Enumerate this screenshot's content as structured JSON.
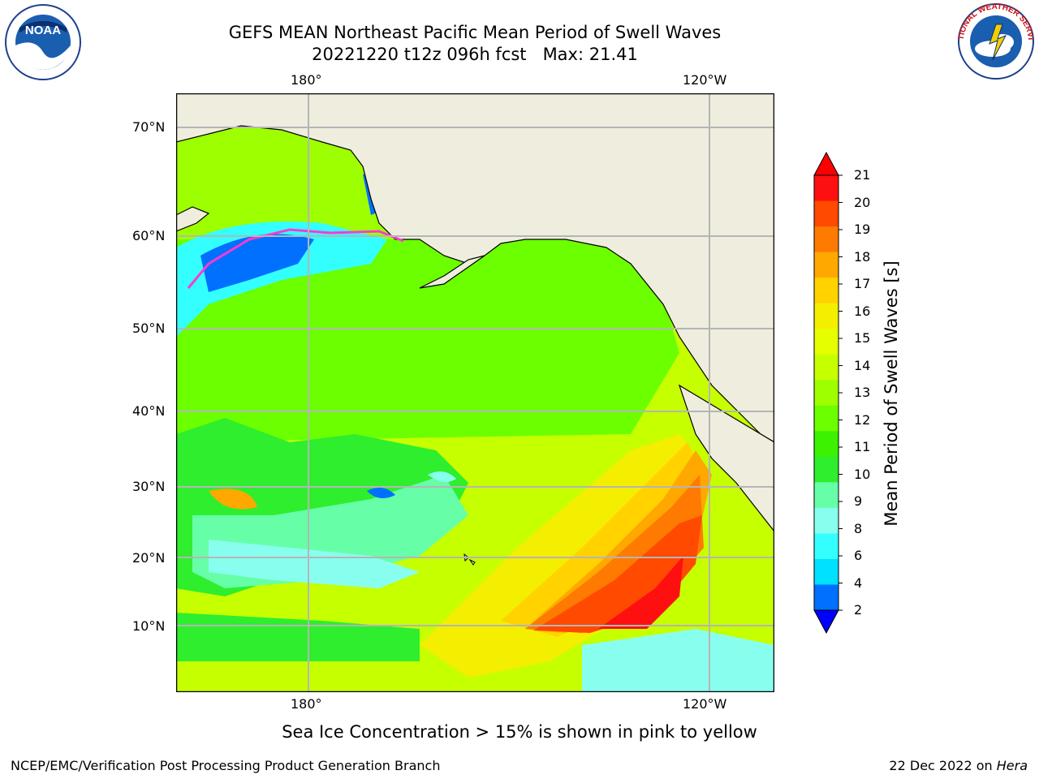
{
  "header": {
    "title_line1": "GEFS MEAN Northeast Pacific Mean Period of Swell Waves",
    "title_line2": "20221220 t12z 096h fcst   Max: 21.41"
  },
  "logos": {
    "left": {
      "text": "NOAA"
    },
    "right": {
      "text": "NATIONAL WEATHER SERVICE"
    }
  },
  "map": {
    "projection": "PlateCarree",
    "extent": {
      "lon_min": 160,
      "lon_max": 250,
      "lat_min": 0,
      "lat_max": 72
    },
    "longitude_labels": [
      "180°",
      "120°W"
    ],
    "latitude_labels": [
      "70°N",
      "60°N",
      "50°N",
      "40°N",
      "30°N",
      "20°N",
      "10°N"
    ],
    "land_color": "#efedde",
    "grid_color": "#b5b5b5"
  },
  "colorbar": {
    "label": "Mean Period of Swell Waves [s]",
    "ticks": [
      "21",
      "20",
      "19",
      "18",
      "17",
      "16",
      "15",
      "14",
      "13",
      "12",
      "11",
      "10",
      "9",
      "8",
      "6",
      "4",
      "2"
    ],
    "colors_top_to_bottom": [
      "#ff1010",
      "#ff4a00",
      "#ff7a00",
      "#ffa800",
      "#ffd200",
      "#f4ee00",
      "#e6ff00",
      "#c6ff00",
      "#9dff00",
      "#6cff00",
      "#3cf200",
      "#2eee2e",
      "#66ffa8",
      "#88ffee",
      "#33ffff",
      "#00e0ff",
      "#0070ff"
    ],
    "extend_top": "#ff0000",
    "extend_bottom": "#0000ff"
  },
  "caption": "Sea Ice Concentration > 15% is shown in pink to yellow",
  "footer": {
    "left": "NCEP/EMC/Verification Post Processing Product Generation Branch",
    "right_prefix": "22 Dec 2022 on ",
    "right_host": "Hera"
  }
}
